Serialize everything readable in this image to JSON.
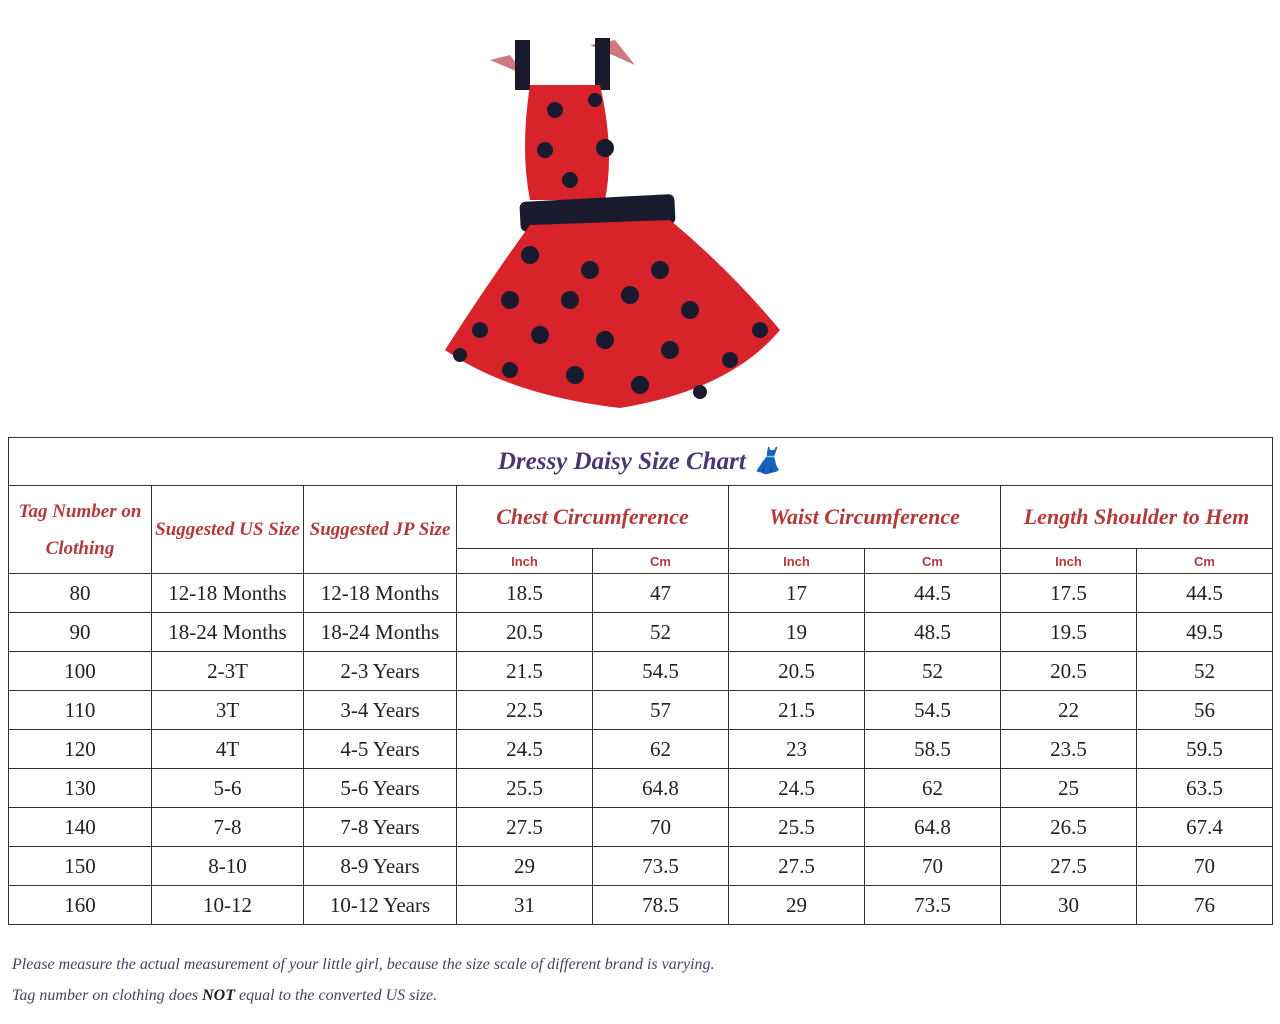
{
  "title": "Dressy Daisy Size Chart",
  "title_icon": "dress-icon",
  "colors": {
    "title": "#4a3575",
    "header": "#b23a3a",
    "dress_red": "#d8232a",
    "dots": "#1a1a2e"
  },
  "headers": {
    "tag": "Tag Number on Clothing",
    "us": "Suggested US Size",
    "jp": "Suggested JP Size",
    "chest": "Chest Circumference",
    "waist": "Waist Circumference",
    "length": "Length Shoulder to Hem",
    "inch": "Inch",
    "cm": "Cm"
  },
  "rows": [
    [
      "80",
      "12-18 Months",
      "12-18 Months",
      "18.5",
      "47",
      "17",
      "44.5",
      "17.5",
      "44.5"
    ],
    [
      "90",
      "18-24 Months",
      "18-24 Months",
      "20.5",
      "52",
      "19",
      "48.5",
      "19.5",
      "49.5"
    ],
    [
      "100",
      "2-3T",
      "2-3 Years",
      "21.5",
      "54.5",
      "20.5",
      "52",
      "20.5",
      "52"
    ],
    [
      "110",
      "3T",
      "3-4 Years",
      "22.5",
      "57",
      "21.5",
      "54.5",
      "22",
      "56"
    ],
    [
      "120",
      "4T",
      "4-5 Years",
      "24.5",
      "62",
      "23",
      "58.5",
      "23.5",
      "59.5"
    ],
    [
      "130",
      "5-6",
      "5-6 Years",
      "25.5",
      "64.8",
      "24.5",
      "62",
      "25",
      "63.5"
    ],
    [
      "140",
      "7-8",
      "7-8 Years",
      "27.5",
      "70",
      "25.5",
      "64.8",
      "26.5",
      "67.4"
    ],
    [
      "150",
      "8-10",
      "8-9 Years",
      "29",
      "73.5",
      "27.5",
      "70",
      "27.5",
      "70"
    ],
    [
      "160",
      "10-12",
      "10-12 Years",
      "31",
      "78.5",
      "29",
      "73.5",
      "30",
      "76"
    ]
  ],
  "notes": {
    "line1": "Please measure the actual measurement of your little girl, because the size scale of different brand is varying.",
    "line2_pre": "Tag number on clothing does ",
    "line2_bold": "NOT",
    "line2_post": " equal to the converted US size."
  }
}
